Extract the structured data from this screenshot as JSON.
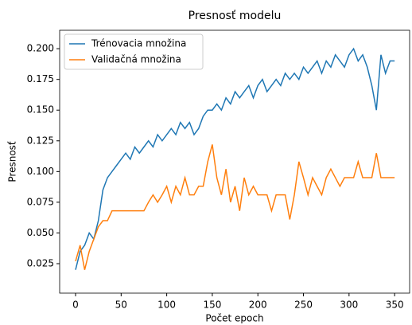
{
  "chart_data": {
    "type": "line",
    "title": "Presnosť modelu",
    "xlabel": "Počet epoch",
    "ylabel": "Presnosť",
    "x": [
      0,
      5,
      10,
      15,
      20,
      25,
      30,
      35,
      40,
      45,
      50,
      55,
      60,
      65,
      70,
      75,
      80,
      85,
      90,
      95,
      100,
      105,
      110,
      115,
      120,
      125,
      130,
      135,
      140,
      145,
      150,
      155,
      160,
      165,
      170,
      175,
      180,
      185,
      190,
      195,
      200,
      205,
      210,
      215,
      220,
      225,
      230,
      235,
      240,
      245,
      250,
      255,
      260,
      265,
      270,
      275,
      280,
      285,
      290,
      295,
      300,
      305,
      310,
      315,
      320,
      325,
      330,
      335,
      340,
      345,
      350
    ],
    "series": [
      {
        "name": "Trénovacia množina",
        "color": "#1f77b4",
        "values": [
          0.02,
          0.035,
          0.04,
          0.05,
          0.045,
          0.06,
          0.085,
          0.095,
          0.1,
          0.105,
          0.11,
          0.115,
          0.11,
          0.12,
          0.115,
          0.12,
          0.125,
          0.12,
          0.13,
          0.125,
          0.13,
          0.135,
          0.13,
          0.14,
          0.135,
          0.14,
          0.13,
          0.135,
          0.145,
          0.15,
          0.15,
          0.155,
          0.15,
          0.16,
          0.155,
          0.165,
          0.16,
          0.165,
          0.17,
          0.16,
          0.17,
          0.175,
          0.165,
          0.17,
          0.175,
          0.17,
          0.18,
          0.175,
          0.18,
          0.175,
          0.185,
          0.18,
          0.185,
          0.19,
          0.18,
          0.19,
          0.185,
          0.195,
          0.19,
          0.185,
          0.195,
          0.2,
          0.19,
          0.195,
          0.185,
          0.17,
          0.15,
          0.195,
          0.18,
          0.19,
          0.19
        ]
      },
      {
        "name": "Validačná množina",
        "color": "#ff7f0e",
        "values": [
          0.027,
          0.04,
          0.02,
          0.035,
          0.045,
          0.055,
          0.06,
          0.06,
          0.068,
          0.068,
          0.068,
          0.068,
          0.068,
          0.068,
          0.068,
          0.068,
          0.075,
          0.081,
          0.075,
          0.081,
          0.088,
          0.075,
          0.088,
          0.081,
          0.095,
          0.081,
          0.081,
          0.088,
          0.088,
          0.108,
          0.122,
          0.095,
          0.081,
          0.102,
          0.075,
          0.088,
          0.068,
          0.095,
          0.081,
          0.088,
          0.081,
          0.081,
          0.081,
          0.068,
          0.081,
          0.081,
          0.081,
          0.061,
          0.081,
          0.108,
          0.095,
          0.081,
          0.095,
          0.088,
          0.081,
          0.095,
          0.102,
          0.095,
          0.088,
          0.095,
          0.095,
          0.095,
          0.108,
          0.095,
          0.095,
          0.095,
          0.115,
          0.095,
          0.095,
          0.095,
          0.095
        ]
      }
    ],
    "xlim": [
      -17.45,
      366.45
    ],
    "xticks": [
      0,
      50,
      100,
      150,
      200,
      250,
      300,
      350
    ],
    "ylim": [
      0.001,
      0.215
    ],
    "yticks": [
      0.025,
      {
        "value": 0.05,
        "label": "0.050"
      },
      0.075,
      {
        "value": 0.1,
        "label": "0.100"
      },
      0.125,
      {
        "value": 0.15,
        "label": "0.150"
      },
      0.175,
      {
        "value": 0.2,
        "label": "0.200"
      }
    ],
    "legend": "upper left"
  }
}
